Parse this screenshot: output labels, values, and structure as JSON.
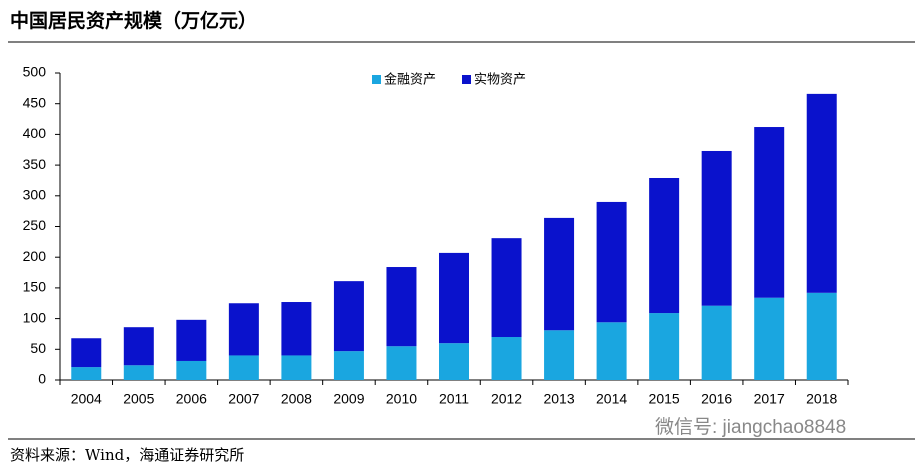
{
  "chart_data": {
    "type": "bar",
    "stacked": true,
    "title": "中国居民资产规模（万亿元）",
    "categories": [
      "2004",
      "2005",
      "2006",
      "2007",
      "2008",
      "2009",
      "2010",
      "2011",
      "2012",
      "2013",
      "2014",
      "2015",
      "2016",
      "2017",
      "2018"
    ],
    "series": [
      {
        "name": "金融资产",
        "color": "#1aa6e0",
        "values": [
          21,
          24,
          31,
          40,
          40,
          47,
          55,
          60,
          70,
          81,
          94,
          109,
          121,
          134,
          142
        ]
      },
      {
        "name": "实物资产",
        "color": "#0a12cc",
        "values": [
          47,
          62,
          67,
          85,
          87,
          114,
          129,
          147,
          161,
          183,
          196,
          220,
          252,
          278,
          324
        ]
      }
    ],
    "ylim": [
      0,
      500
    ],
    "yticks": [
      0,
      50,
      100,
      150,
      200,
      250,
      300,
      350,
      400,
      450,
      500
    ],
    "source": "资料来源：Wind，海通证券研究所",
    "watermark": "微信号: jiangchao8848"
  }
}
